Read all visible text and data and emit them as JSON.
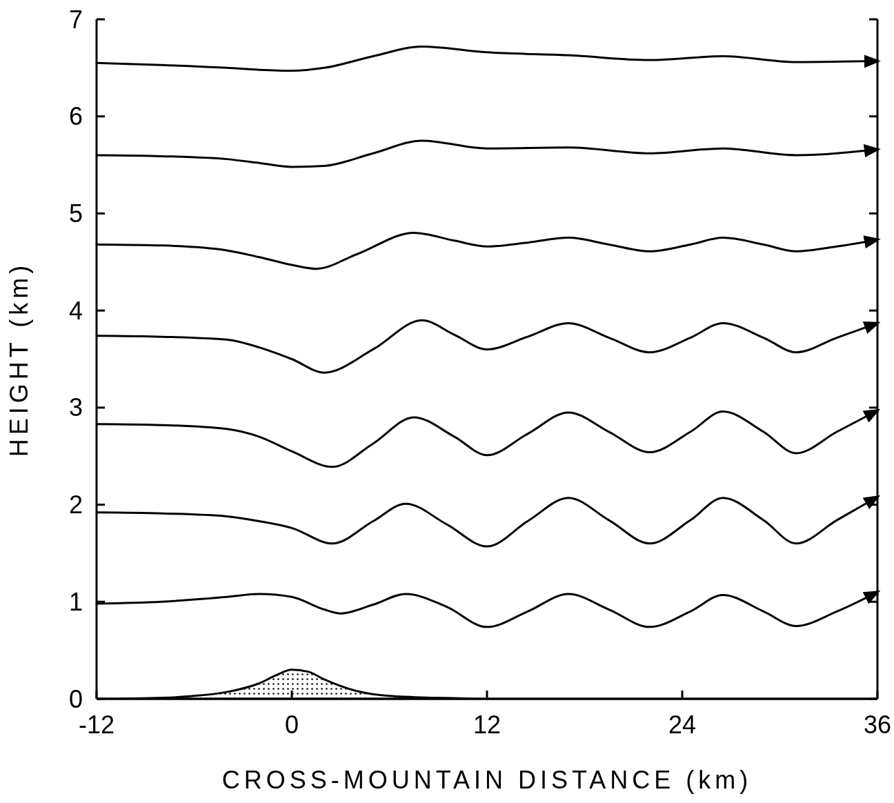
{
  "chart_data": {
    "type": "line",
    "xlabel": "CROSS-MOUNTAIN DISTANCE (km)",
    "ylabel": "HEIGHT (km)",
    "xlim": [
      -12,
      36
    ],
    "xticks": [
      -12,
      0,
      12,
      24,
      36
    ],
    "ylim": [
      0,
      7
    ],
    "yticks": [
      0,
      1,
      2,
      3,
      4,
      5,
      6,
      7
    ],
    "series": [
      {
        "type": "area",
        "color": "#000000",
        "x": [
          -12,
          -8,
          -6,
          -4,
          -2,
          -1,
          0,
          1,
          2,
          4,
          6,
          9,
          12,
          36
        ],
        "values": [
          0,
          0.01,
          0.03,
          0.07,
          0.16,
          0.24,
          0.3,
          0.28,
          0.2,
          0.08,
          0.03,
          0.01,
          0,
          0
        ]
      },
      {
        "color": "#000000",
        "x": [
          -12,
          -8,
          -4,
          -2,
          0,
          2,
          3,
          5,
          7,
          9.5,
          12,
          14.5,
          17,
          19.5,
          22,
          24.5,
          26.5,
          29,
          31,
          33.5,
          36
        ],
        "values": [
          0.98,
          1.0,
          1.05,
          1.08,
          1.05,
          0.92,
          0.88,
          0.97,
          1.08,
          0.95,
          0.74,
          0.9,
          1.08,
          0.92,
          0.74,
          0.9,
          1.07,
          0.9,
          0.75,
          0.9,
          1.1
        ]
      },
      {
        "color": "#000000",
        "x": [
          -12,
          -8,
          -4,
          -2,
          0,
          2.5,
          5,
          7,
          9.5,
          12,
          14.5,
          17,
          19.5,
          22,
          24.5,
          26.5,
          29,
          31,
          33.5,
          36
        ],
        "values": [
          1.92,
          1.91,
          1.88,
          1.83,
          1.76,
          1.6,
          1.83,
          2.01,
          1.8,
          1.57,
          1.83,
          2.07,
          1.84,
          1.6,
          1.84,
          2.07,
          1.84,
          1.6,
          1.84,
          2.08
        ]
      },
      {
        "color": "#000000",
        "x": [
          -12,
          -8,
          -4,
          -2,
          0,
          2.5,
          5,
          7.5,
          10,
          12,
          14.5,
          17,
          19.5,
          22,
          24.5,
          26.5,
          29,
          31,
          33.5,
          36
        ],
        "values": [
          2.83,
          2.82,
          2.78,
          2.7,
          2.55,
          2.39,
          2.63,
          2.9,
          2.7,
          2.51,
          2.73,
          2.95,
          2.75,
          2.54,
          2.75,
          2.96,
          2.75,
          2.53,
          2.75,
          2.97
        ]
      },
      {
        "color": "#000000",
        "x": [
          -12,
          -8,
          -4,
          -2,
          0,
          2,
          5,
          8,
          10,
          12,
          14.5,
          17,
          19.5,
          22,
          24.5,
          26.5,
          29,
          31,
          33.5,
          36
        ],
        "values": [
          3.74,
          3.73,
          3.7,
          3.62,
          3.5,
          3.36,
          3.6,
          3.9,
          3.75,
          3.6,
          3.73,
          3.87,
          3.72,
          3.57,
          3.72,
          3.87,
          3.72,
          3.57,
          3.72,
          3.87
        ]
      },
      {
        "color": "#000000",
        "x": [
          -12,
          -8,
          -4,
          -2,
          0,
          1.5,
          4,
          7.5,
          10,
          12,
          14.5,
          17,
          19.5,
          22,
          24.5,
          26.5,
          29,
          31,
          33.5,
          36
        ],
        "values": [
          4.68,
          4.67,
          4.62,
          4.55,
          4.47,
          4.43,
          4.58,
          4.8,
          4.72,
          4.66,
          4.7,
          4.75,
          4.68,
          4.61,
          4.68,
          4.75,
          4.68,
          4.61,
          4.66,
          4.73
        ]
      },
      {
        "color": "#000000",
        "x": [
          -12,
          -8,
          -4,
          -2,
          0,
          2,
          5,
          8,
          12,
          17,
          22,
          26.5,
          31,
          36
        ],
        "values": [
          5.6,
          5.59,
          5.56,
          5.52,
          5.48,
          5.49,
          5.62,
          5.75,
          5.67,
          5.68,
          5.62,
          5.67,
          5.6,
          5.66
        ]
      },
      {
        "color": "#000000",
        "x": [
          -12,
          -8,
          -4,
          -2,
          0,
          2,
          5,
          8,
          12,
          17,
          22,
          26.5,
          31,
          36
        ],
        "values": [
          6.55,
          6.53,
          6.5,
          6.48,
          6.47,
          6.5,
          6.62,
          6.72,
          6.66,
          6.63,
          6.58,
          6.62,
          6.56,
          6.57
        ]
      }
    ]
  }
}
